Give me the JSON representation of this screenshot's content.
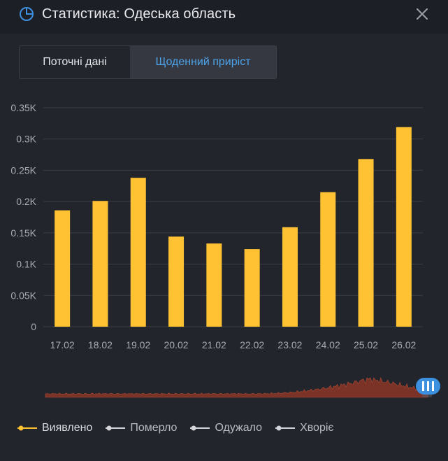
{
  "header": {
    "title": "Статистика: Одеська область",
    "pie_icon": "pie-chart-icon",
    "close_icon": "close-icon",
    "accent": "#3d8fe0"
  },
  "tabs": [
    {
      "label": "Поточні дані",
      "active": false
    },
    {
      "label": "Щоденний приріст",
      "active": true
    }
  ],
  "chart_data": {
    "type": "bar",
    "categories": [
      "17.02",
      "18.02",
      "19.02",
      "20.02",
      "21.02",
      "22.02",
      "23.02",
      "24.02",
      "25.02",
      "26.02"
    ],
    "series": [
      {
        "name": "Виявлено",
        "values": [
          186,
          201,
          238,
          144,
          133,
          124,
          159,
          215,
          268,
          319
        ],
        "color": "#ffc233"
      }
    ],
    "y_ticks": [
      "0",
      "0.05K",
      "0.1K",
      "0.15K",
      "0.2K",
      "0.25K",
      "0.3K",
      "0.35K"
    ],
    "ylim": [
      0,
      350
    ],
    "grid": true,
    "navigator": true
  },
  "legend": [
    {
      "label": "Виявлено",
      "color": "#ffc233",
      "active": true
    },
    {
      "label": "Померло",
      "color": "#d4d6db",
      "active": false
    },
    {
      "label": "Одужало",
      "color": "#d4d6db",
      "active": false
    },
    {
      "label": "Хворіє",
      "color": "#d4d6db",
      "active": false
    }
  ]
}
